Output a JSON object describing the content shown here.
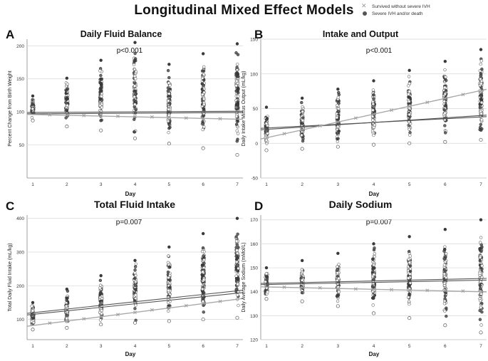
{
  "title": "Longitudinal Mixed Effect Models",
  "legend": [
    {
      "label": "Survived without severe IVH",
      "marker": "x",
      "color": "#aaaaaa"
    },
    {
      "label": "Severe IVH and/or death",
      "marker": "circle",
      "color": "#555555"
    }
  ],
  "colors": {
    "dark_points": "#3a3a3a",
    "light_points": "#b5b5b5",
    "dark_line": "#555555",
    "light_line": "#a8a8a8",
    "grid": "#d8d8d8"
  },
  "chart_data": [
    {
      "panel": "A",
      "type": "scatter",
      "title": "Daily Fluid Balance",
      "annotation": "p<0.001",
      "xlabel": "Day",
      "ylabel": "Percent Change from Birth Weight",
      "x_ticks": [
        1,
        2,
        3,
        4,
        5,
        6,
        7
      ],
      "y_ticks": [
        50,
        100,
        150,
        200
      ],
      "ylim": [
        0,
        210
      ],
      "spread": [
        [
          87,
          124
        ],
        [
          78,
          151
        ],
        [
          72,
          178
        ],
        [
          60,
          205
        ],
        [
          52,
          172
        ],
        [
          45,
          188
        ],
        [
          35,
          203
        ]
      ],
      "series": [
        {
          "name": "Severe IVH and/or death",
          "fit_start": 99,
          "fit_end": 101
        },
        {
          "name": "Severe IVH and/or death (upper)",
          "fit_start": 97,
          "fit_end": 99
        },
        {
          "name": "Survived without severe IVH",
          "fit_start": 96,
          "fit_end": 89,
          "x_markers": [
            1.5,
            2,
            2.5,
            3,
            3.5,
            4,
            4.5,
            5,
            5.5,
            6,
            6.5
          ]
        }
      ]
    },
    {
      "panel": "B",
      "type": "scatter",
      "title": "Intake and Output",
      "annotation": "p<0.001",
      "xlabel": "Day",
      "ylabel": "Daily Intake Minus Output (mL/kg)",
      "x_ticks": [
        1,
        2,
        3,
        4,
        5,
        6,
        7
      ],
      "y_ticks": [
        -50,
        0,
        50,
        100,
        150
      ],
      "ylim": [
        -50,
        150
      ],
      "spread": [
        [
          -10,
          52
        ],
        [
          -8,
          65
        ],
        [
          -5,
          78
        ],
        [
          -2,
          90
        ],
        [
          0,
          105
        ],
        [
          2,
          118
        ],
        [
          5,
          135
        ]
      ],
      "series": [
        {
          "name": "Severe IVH and/or death",
          "fit_start": 22,
          "fit_end": 38
        },
        {
          "name": "Severe IVH and/or death (upper)",
          "fit_start": 20,
          "fit_end": 40
        },
        {
          "name": "Survived without severe IVH",
          "fit_start": 8,
          "fit_end": 76,
          "x_markers": [
            1.5,
            2,
            2.5,
            3,
            3.5,
            4,
            4.5,
            5,
            5.5,
            6,
            6.5
          ]
        }
      ]
    },
    {
      "panel": "C",
      "type": "scatter",
      "title": "Total Fluid Intake",
      "annotation": "p=0.007",
      "xlabel": "Day",
      "ylabel": "Total Daily Fluid Intake (mL/kg)",
      "x_ticks": [
        1,
        2,
        3,
        4,
        5,
        6,
        7
      ],
      "y_ticks": [
        100,
        200,
        300,
        400
      ],
      "ylim": [
        40,
        410
      ],
      "spread": [
        [
          70,
          150
        ],
        [
          75,
          190
        ],
        [
          85,
          230
        ],
        [
          90,
          275
        ],
        [
          95,
          315
        ],
        [
          100,
          355
        ],
        [
          105,
          400
        ]
      ],
      "series": [
        {
          "name": "Severe IVH and/or death",
          "fit_start": 120,
          "fit_end": 185
        },
        {
          "name": "Severe IVH and/or death (upper)",
          "fit_start": 115,
          "fit_end": 178
        },
        {
          "name": "Survived without severe IVH",
          "fit_start": 82,
          "fit_end": 160,
          "x_markers": [
            1.5,
            2,
            2.5,
            3,
            3.5,
            4,
            4.5,
            5,
            5.5,
            6,
            6.5
          ]
        }
      ]
    },
    {
      "panel": "D",
      "type": "scatter",
      "title": "Daily Sodium",
      "annotation": "p=0.007",
      "xlabel": "Day",
      "ylabel": "Daily Average Sodium (mMol/L)",
      "x_ticks": [
        1,
        2,
        3,
        4,
        5,
        6,
        7
      ],
      "y_ticks": [
        120,
        130,
        140,
        150,
        160,
        170
      ],
      "ylim": [
        120,
        172
      ],
      "spread": [
        [
          137,
          150
        ],
        [
          136,
          153
        ],
        [
          134,
          156
        ],
        [
          131,
          160
        ],
        [
          129,
          163
        ],
        [
          126,
          166
        ],
        [
          123,
          170
        ]
      ],
      "series": [
        {
          "name": "Severe IVH and/or death",
          "fit_start": 143.5,
          "fit_end": 145.5
        },
        {
          "name": "Severe IVH and/or death (upper)",
          "fit_start": 143,
          "fit_end": 144.8
        },
        {
          "name": "Survived without severe IVH",
          "fit_start": 142,
          "fit_end": 140,
          "x_markers": [
            1.5,
            2,
            2.5,
            3,
            3.5,
            4,
            4.5,
            5,
            5.5,
            6,
            6.5
          ]
        }
      ]
    }
  ]
}
